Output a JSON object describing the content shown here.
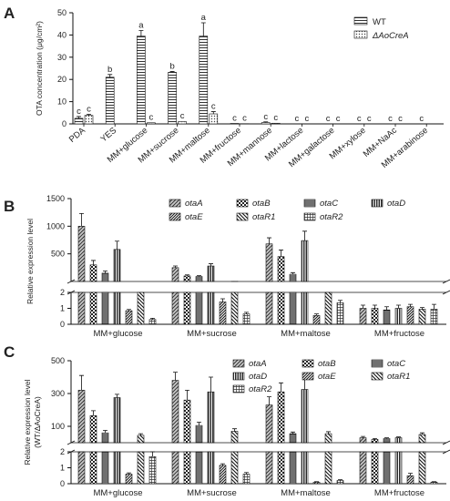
{
  "panels": {
    "A": {
      "letter": "A"
    },
    "B": {
      "letter": "B"
    },
    "C": {
      "letter": "C"
    }
  },
  "chart_data": [
    {
      "panel": "A",
      "type": "bar",
      "ylabel": "OTA concentration (μg/cm²)",
      "ylim": [
        0,
        50
      ],
      "yticks": [
        0,
        10,
        20,
        30,
        40,
        50
      ],
      "categories": [
        "PDA",
        "YES",
        "MM+glucose",
        "MM+sucrose",
        "MM+maltose",
        "MM+fructose",
        "MM+mannose",
        "MM+lactose",
        "MM+galactose",
        "MM+xylose",
        "MM+NaAc",
        "MM+arabinose"
      ],
      "series": [
        {
          "name": "WT",
          "values": [
            2.5,
            21,
            39.5,
            23.2,
            39.5,
            0.2,
            0.6,
            0,
            0,
            0,
            0,
            0
          ],
          "errors": [
            0.8,
            1.2,
            2.5,
            0.4,
            6.0,
            0.1,
            0.3,
            0,
            0,
            0,
            0,
            0
          ]
        },
        {
          "name": "ΔAoCreA",
          "values": [
            3.8,
            0,
            0.5,
            1,
            4.5,
            0.1,
            0.3,
            0,
            0,
            0,
            0,
            0
          ],
          "errors": [
            0.5,
            0,
            0.2,
            0.2,
            1.0,
            0.05,
            0.1,
            0,
            0,
            0,
            0,
            0
          ]
        }
      ],
      "significance": {
        "WT": [
          "c",
          "b",
          "a",
          "b",
          "a",
          "c",
          "c",
          "c",
          "c",
          "c",
          "c",
          "c"
        ],
        "ΔAoCreA": [
          "c",
          "",
          "c",
          "c",
          "c",
          "c",
          "c",
          "c",
          "c",
          "c",
          "c",
          ""
        ]
      },
      "legend_position": "top-right"
    },
    {
      "panel": "B",
      "type": "bar",
      "ylabel": "Relative expression level",
      "broken_axis": true,
      "lower_ylim": [
        0,
        2
      ],
      "lower_yticks": [
        0,
        1,
        2
      ],
      "upper_ylim": [
        0,
        1500
      ],
      "upper_yticks": [
        500,
        1000,
        1500
      ],
      "categories": [
        "MM+glucose",
        "MM+sucrose",
        "MM+maltose",
        "MM+fructose"
      ],
      "series": [
        {
          "name": "otaA",
          "values": [
            1000,
            250,
            680,
            1.0
          ],
          "errors": [
            230,
            30,
            110,
            0.2
          ]
        },
        {
          "name": "otaB",
          "values": [
            300,
            100,
            450,
            1.0
          ],
          "errors": [
            80,
            20,
            120,
            0.2
          ]
        },
        {
          "name": "otaC",
          "values": [
            150,
            90,
            130,
            0.9
          ],
          "errors": [
            40,
            15,
            30,
            0.2
          ]
        },
        {
          "name": "otaD",
          "values": [
            580,
            280,
            740,
            1.0
          ],
          "errors": [
            150,
            40,
            170,
            0.2
          ]
        },
        {
          "name": "otaE",
          "values": [
            0.85,
            1.4,
            0.55,
            1.1
          ],
          "errors": [
            0.08,
            0.2,
            0.1,
            0.15
          ]
        },
        {
          "name": "otaR1",
          "values": [
            2.0,
            2.1,
            2.0,
            0.95
          ],
          "errors": [
            0.1,
            0.2,
            0.1,
            0.1
          ]
        },
        {
          "name": "otaR2",
          "values": [
            0.3,
            0.65,
            1.35,
            0.95
          ],
          "errors": [
            0.08,
            0.1,
            0.15,
            0.3
          ]
        }
      ],
      "legend_position": "top-right"
    },
    {
      "panel": "C",
      "type": "bar",
      "ylabel": "Relative expression level (WT/ΔAoCreA)",
      "broken_axis": true,
      "lower_ylim": [
        0,
        2
      ],
      "lower_yticks": [
        0,
        1,
        2
      ],
      "upper_ylim": [
        0,
        500
      ],
      "upper_yticks": [
        100,
        300,
        500
      ],
      "categories": [
        "MM+glucose",
        "MM+sucrose",
        "MM+maltose",
        "MM+fructose"
      ],
      "series": [
        {
          "name": "otaA",
          "values": [
            320,
            380,
            230,
            30
          ],
          "errors": [
            90,
            50,
            50,
            8
          ]
        },
        {
          "name": "otaB",
          "values": [
            165,
            260,
            310,
            20
          ],
          "errors": [
            30,
            60,
            55,
            5
          ]
        },
        {
          "name": "otaC",
          "values": [
            60,
            105,
            55,
            25
          ],
          "errors": [
            15,
            20,
            10,
            5
          ]
        },
        {
          "name": "otaD",
          "values": [
            275,
            310,
            325,
            30
          ],
          "errors": [
            20,
            90,
            85,
            5
          ]
        },
        {
          "name": "otaE",
          "values": [
            0.6,
            1.15,
            0.1,
            0.5
          ],
          "errors": [
            0.08,
            0.1,
            0.03,
            0.15
          ]
        },
        {
          "name": "otaR1",
          "values": [
            45,
            70,
            55,
            50
          ],
          "errors": [
            10,
            15,
            12,
            10
          ]
        },
        {
          "name": "otaR2",
          "values": [
            1.7,
            0.6,
            0.2,
            0.1
          ],
          "errors": [
            0.3,
            0.1,
            0.05,
            0.03
          ]
        }
      ],
      "legend_position": "top-right"
    }
  ]
}
